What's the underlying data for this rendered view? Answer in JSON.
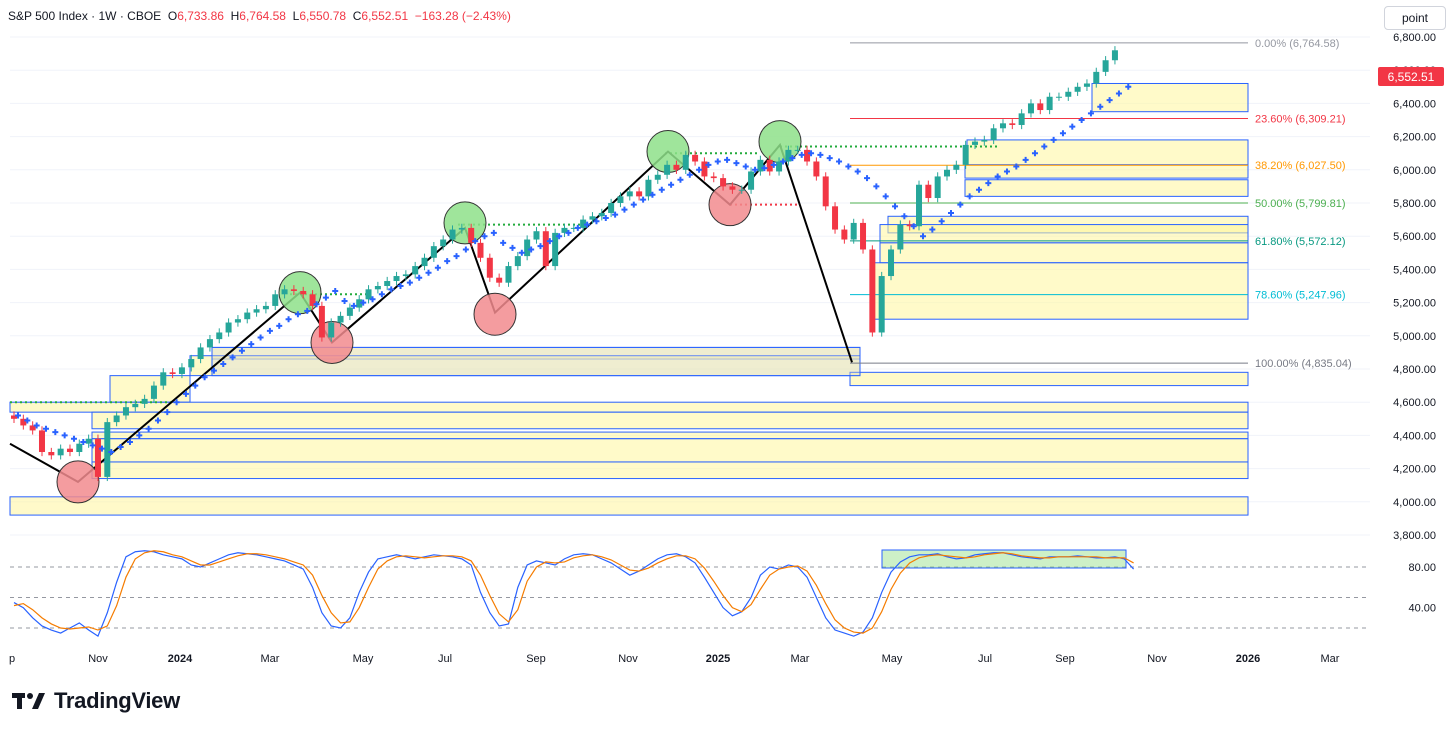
{
  "header": {
    "symbol": "S&P 500 Index · 1W · CBOE",
    "o_label": "O",
    "o_value": "6,733.86",
    "h_label": "H",
    "h_value": "6,764.58",
    "l_label": "L",
    "l_value": "6,550.78",
    "c_label": "C",
    "c_value": "6,552.51",
    "change": "−163.28 (−2.43%)"
  },
  "unit_button": "point",
  "last_price_tag": "6,552.51",
  "logo_text": "TradingView",
  "colors": {
    "up": "#26a69a",
    "down": "#f23645",
    "psar": "#2962ff",
    "zone_fill": "#fff59d",
    "zone_border": "#2962ff",
    "k_line": "#2962ff",
    "d_line": "#f57c00"
  },
  "chart_data": [
    {
      "type": "candlestick",
      "title": "S&P 500 Index · 1W · CBOE",
      "ylim": [
        3800,
        6900
      ],
      "y_ticks": [
        "6,800.00",
        "6,600.00",
        "6,400.00",
        "6,200.00",
        "6,000.00",
        "5,800.00",
        "5,600.00",
        "5,400.00",
        "5,200.00",
        "5,000.00",
        "4,800.00",
        "4,600.00",
        "4,400.00",
        "4,200.00",
        "4,000.00",
        "3,800.00"
      ],
      "x_ticks": [
        "p",
        "Nov",
        "2024",
        "Mar",
        "May",
        "Jul",
        "Sep",
        "Nov",
        "2025",
        "Mar",
        "May",
        "Jul",
        "Sep",
        "Nov",
        "2026",
        "Mar"
      ],
      "fib_levels": [
        {
          "label": "0.00% (6,764.58)",
          "value": 6764.58,
          "color": "#9598a1"
        },
        {
          "label": "23.60% (6,309.21)",
          "value": 6309.21,
          "color": "#f23645"
        },
        {
          "label": "38.20% (6,027.50)",
          "value": 6027.5,
          "color": "#ff9800"
        },
        {
          "label": "50.00% (5,799.81)",
          "value": 5799.81,
          "color": "#4caf50"
        },
        {
          "label": "61.80% (5,572.12)",
          "value": 5572.12,
          "color": "#089981"
        },
        {
          "label": "78.60% (5,247.96)",
          "value": 5247.96,
          "color": "#00bcd4"
        },
        {
          "label": "100.00% (4,835.04)",
          "value": 4835.04,
          "color": "#787b86"
        }
      ],
      "candles_close": [
        4500,
        4460,
        4430,
        4300,
        4280,
        4320,
        4300,
        4350,
        4380,
        4150,
        4480,
        4520,
        4570,
        4590,
        4620,
        4700,
        4780,
        4770,
        4810,
        4860,
        4930,
        4980,
        5020,
        5080,
        5100,
        5140,
        5160,
        5180,
        5250,
        5280,
        5270,
        5250,
        5180,
        4990,
        5080,
        5120,
        5170,
        5220,
        5280,
        5300,
        5330,
        5360,
        5370,
        5420,
        5470,
        5540,
        5580,
        5640,
        5650,
        5560,
        5470,
        5350,
        5320,
        5420,
        5480,
        5580,
        5630,
        5420,
        5620,
        5650,
        5650,
        5700,
        5720,
        5740,
        5800,
        5840,
        5870,
        5840,
        5940,
        5970,
        6030,
        6000,
        6090,
        6050,
        5960,
        5950,
        5900,
        5880,
        5880,
        5990,
        6060,
        5990,
        6050,
        6120,
        6120,
        6050,
        5960,
        5780,
        5640,
        5580,
        5680,
        5520,
        5020,
        5360,
        5520,
        5670,
        5660,
        5910,
        5830,
        5960,
        6000,
        6030,
        6150,
        6170,
        6180,
        6250,
        6280,
        6270,
        6340,
        6400,
        6360,
        6440,
        6440,
        6470,
        6500,
        6520,
        6590,
        6660,
        6720,
        6740,
        6553
      ],
      "psar": [
        4520,
        4490,
        4460,
        4440,
        4420,
        4400,
        4380,
        4360,
        4340,
        4320,
        4300,
        4330,
        4360,
        4400,
        4440,
        4490,
        4540,
        4600,
        4650,
        4700,
        4750,
        4790,
        4830,
        4870,
        4910,
        4950,
        4990,
        5030,
        5060,
        5100,
        5130,
        5150,
        5190,
        5230,
        5270,
        5210,
        5180,
        5200,
        5220,
        5250,
        5280,
        5300,
        5320,
        5350,
        5380,
        5410,
        5450,
        5480,
        5520,
        5570,
        5600,
        5620,
        5560,
        5530,
        5500,
        5520,
        5540,
        5570,
        5600,
        5620,
        5650,
        5670,
        5690,
        5710,
        5730,
        5760,
        5790,
        5820,
        5850,
        5880,
        5910,
        5940,
        5970,
        6000,
        6030,
        6050,
        6060,
        6040,
        6020,
        6000,
        6010,
        6030,
        6050,
        6070,
        6090,
        6100,
        6090,
        6070,
        6050,
        6020,
        5990,
        5950,
        5900,
        5840,
        5780,
        5720,
        5660,
        5600,
        5640,
        5690,
        5740,
        5790,
        5840,
        5880,
        5920,
        5960,
        5990,
        6020,
        6060,
        6100,
        6140,
        6180,
        6220,
        6260,
        6300,
        6340,
        6380,
        6420,
        6460,
        6500,
        6530
      ]
    },
    {
      "type": "line",
      "title": "",
      "ylim": [
        0,
        100
      ],
      "y_ticks": [
        "80.00",
        "40.00"
      ],
      "reference_lines": [
        20,
        50,
        80
      ],
      "series": [
        {
          "values": [
            45,
            40,
            30,
            22,
            18,
            15,
            20,
            25,
            18,
            12,
            35,
            65,
            90,
            95,
            96,
            95,
            92,
            90,
            88,
            82,
            80,
            84,
            88,
            92,
            94,
            93,
            92,
            90,
            88,
            86,
            82,
            78,
            60,
            35,
            22,
            20,
            30,
            55,
            75,
            88,
            90,
            92,
            90,
            88,
            90,
            92,
            91,
            90,
            88,
            82,
            55,
            35,
            22,
            24,
            60,
            82,
            86,
            84,
            82,
            88,
            92,
            93,
            92,
            88,
            84,
            78,
            72,
            76,
            82,
            88,
            92,
            93,
            90,
            84,
            70,
            55,
            40,
            32,
            36,
            50,
            72,
            80,
            78,
            82,
            80,
            70,
            50,
            30,
            18,
            15,
            12,
            16,
            30,
            55,
            75,
            85,
            90,
            92,
            92,
            93,
            90,
            88,
            89,
            92,
            93,
            94,
            94,
            92,
            90,
            89,
            88,
            90,
            90,
            90,
            91,
            90,
            89,
            89,
            90,
            88,
            78
          ]
        },
        {
          "values": [
            42,
            44,
            38,
            30,
            24,
            20,
            19,
            20,
            21,
            18,
            22,
            42,
            70,
            88,
            94,
            96,
            95,
            92,
            90,
            86,
            82,
            82,
            85,
            88,
            91,
            93,
            93,
            92,
            90,
            88,
            85,
            82,
            72,
            52,
            35,
            25,
            26,
            40,
            60,
            78,
            86,
            90,
            91,
            90,
            89,
            90,
            91,
            91,
            90,
            86,
            72,
            52,
            34,
            26,
            38,
            66,
            80,
            85,
            84,
            85,
            89,
            91,
            92,
            90,
            87,
            82,
            77,
            76,
            79,
            84,
            88,
            91,
            91,
            88,
            79,
            66,
            52,
            40,
            36,
            43,
            58,
            72,
            78,
            80,
            81,
            76,
            62,
            44,
            28,
            20,
            16,
            15,
            20,
            36,
            58,
            74,
            84,
            89,
            91,
            92,
            91,
            90,
            89,
            90,
            92,
            93,
            94,
            93,
            91,
            90,
            89,
            89,
            90,
            90,
            90,
            90,
            90,
            89,
            89,
            89,
            84
          ]
        }
      ]
    }
  ]
}
